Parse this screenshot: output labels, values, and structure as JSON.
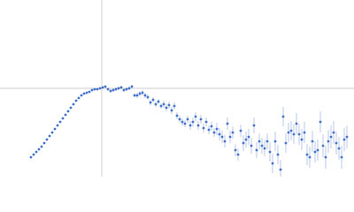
{
  "chart_data": {
    "type": "scatter",
    "x": [
      35,
      38,
      41,
      44,
      47,
      50,
      53,
      56,
      59,
      62,
      65,
      68,
      71,
      74,
      77,
      80,
      83,
      86,
      89,
      92,
      95,
      98,
      101,
      104,
      107,
      110,
      113,
      116,
      119,
      122,
      125,
      128,
      131,
      134,
      137,
      140,
      143,
      146,
      149,
      152,
      155,
      158,
      161,
      164,
      167,
      170,
      173,
      176,
      179,
      182,
      185,
      188,
      191,
      194,
      197,
      200,
      203,
      206,
      209,
      212,
      215,
      218,
      221,
      224,
      227,
      230,
      233,
      236,
      239,
      242,
      245,
      248,
      251,
      254,
      257,
      260,
      263,
      266,
      269,
      272,
      275,
      278,
      281,
      284,
      287,
      290,
      293,
      296,
      299,
      302,
      305,
      308,
      311,
      314,
      317,
      320,
      323,
      326,
      329,
      332,
      335,
      338,
      341,
      344,
      347,
      350,
      353,
      356,
      359,
      362,
      365,
      368,
      371,
      374,
      377,
      380,
      383,
      386,
      389,
      392
    ],
    "values": [
      22,
      25,
      28,
      31,
      34,
      38,
      42,
      46,
      50,
      54,
      58,
      62,
      66,
      70,
      74,
      78,
      82,
      86,
      89,
      92,
      94,
      95,
      96,
      98,
      99,
      99,
      100,
      101,
      102,
      99,
      97,
      98,
      99,
      100,
      101,
      98,
      99,
      100,
      102,
      92,
      92,
      94,
      95,
      92,
      90,
      84,
      87,
      82,
      85,
      80,
      82,
      78,
      81,
      75,
      80,
      69,
      65,
      62,
      60,
      65,
      58,
      62,
      68,
      58,
      65,
      55,
      62,
      53,
      57,
      50,
      54,
      48,
      45,
      40,
      60,
      45,
      50,
      30,
      25,
      52,
      38,
      42,
      45,
      35,
      58,
      30,
      40,
      35,
      32,
      40,
      28,
      15,
      40,
      25,
      8,
      68,
      38,
      50,
      52,
      48,
      60,
      48,
      42,
      50,
      25,
      22,
      40,
      28,
      30,
      62,
      35,
      22,
      40,
      45,
      50,
      38,
      32,
      22,
      42,
      45
    ],
    "errors": [
      1,
      1,
      1,
      1,
      1,
      1,
      1,
      1,
      1,
      1,
      1,
      1,
      1,
      1,
      1,
      1,
      1,
      1,
      1,
      1,
      1,
      1,
      1,
      1,
      1,
      1,
      1,
      1,
      1,
      1,
      2,
      2,
      2,
      2,
      2,
      2,
      2,
      2,
      2,
      2,
      3,
      3,
      3,
      3,
      3,
      3,
      3,
      3,
      3,
      3,
      4,
      4,
      4,
      4,
      4,
      4,
      4,
      4,
      4,
      4,
      5,
      5,
      5,
      5,
      5,
      5,
      5,
      5,
      5,
      5,
      7,
      7,
      7,
      7,
      7,
      7,
      7,
      7,
      7,
      7,
      9,
      9,
      9,
      9,
      9,
      9,
      9,
      9,
      9,
      9,
      11,
      11,
      11,
      11,
      11,
      11,
      11,
      11,
      11,
      11,
      12,
      12,
      12,
      12,
      12,
      12,
      12,
      12,
      12,
      12,
      13,
      13,
      13,
      13,
      13,
      13,
      13,
      13,
      13,
      13
    ],
    "color": "#3f6fc6",
    "error_color": "#a9bde3",
    "xlim": [
      0,
      400
    ],
    "ylim": [
      0,
      200
    ],
    "reference_lines": {
      "x": 115,
      "y": 100,
      "color": "#cccccc"
    }
  }
}
